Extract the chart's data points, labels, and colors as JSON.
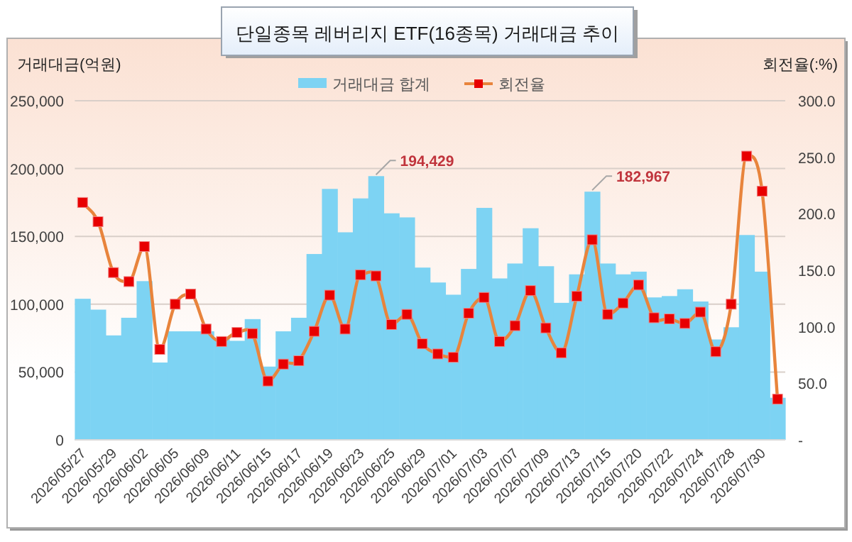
{
  "chart_data": {
    "type": "bar",
    "title": "단일종목 레버리지 ETF(16종목) 거래대금 추이",
    "ylabel": "거래대금(억원)",
    "y2label": "회전율(:%)",
    "categories": [
      "2026/05/27",
      null,
      "2026/05/29",
      null,
      "2026/06/02",
      null,
      "2026/06/05",
      null,
      "2026/06/09",
      null,
      "2026/06/11",
      null,
      "2026/06/15",
      null,
      "2026/06/17",
      null,
      "2026/06/19",
      null,
      "2026/06/23",
      null,
      "2026/06/25",
      null,
      "2026/06/29",
      null,
      "2026/07/01",
      null,
      "2026/07/03",
      null,
      "2026/07/07",
      null,
      "2026/07/09",
      null,
      "2026/07/13",
      null,
      "2026/07/15",
      null,
      "2026/07/20",
      null,
      "2026/07/22",
      null,
      "2026/07/24",
      null,
      "2026/07/28",
      null,
      "2026/07/30",
      null
    ],
    "series": [
      {
        "name": "거래대금 합계",
        "color": "#7dd3f3",
        "values": [
          104000,
          96000,
          77000,
          90000,
          117000,
          57000,
          80000,
          80000,
          80000,
          75000,
          73000,
          89000,
          54000,
          80000,
          90000,
          137000,
          185000,
          153000,
          178000,
          194429,
          167000,
          164000,
          127000,
          116000,
          107000,
          126000,
          171000,
          119000,
          130000,
          156000,
          128000,
          101000,
          122000,
          182967,
          130000,
          122000,
          124000,
          105000,
          106000,
          111000,
          102000,
          74000,
          83000,
          151000,
          124000,
          31000
        ],
        "value_labels": [
          null,
          null,
          null,
          null,
          null,
          null,
          null,
          null,
          null,
          null,
          null,
          null,
          null,
          null,
          null,
          null,
          null,
          null,
          null,
          "194,429",
          null,
          null,
          null,
          null,
          null,
          null,
          null,
          null,
          null,
          null,
          null,
          null,
          null,
          "182,967",
          null,
          null,
          null,
          null,
          null,
          null,
          null,
          null,
          null,
          null,
          null,
          null
        ]
      },
      {
        "name": "회전율",
        "type": "line",
        "axis": "y2",
        "color": "#e8843c",
        "marker": "square",
        "values": [
          210,
          193,
          148,
          140,
          171,
          80,
          120,
          129,
          98,
          87,
          95,
          94,
          52,
          67,
          70,
          96,
          128,
          98,
          146,
          145,
          102,
          111,
          85,
          76,
          73,
          112,
          126,
          87,
          101,
          132,
          99,
          77,
          127,
          177,
          111,
          121,
          137,
          108,
          107,
          103,
          113,
          78,
          120,
          251,
          220,
          36
        ]
      }
    ],
    "ylim": [
      0,
      250000
    ],
    "yticks": [
      0,
      {
        "value": 50000,
        "label": "50,000"
      },
      {
        "value": 100000,
        "label": "100,000"
      },
      {
        "value": 150000,
        "label": "150,000"
      },
      {
        "value": 200000,
        "label": "200,000"
      },
      {
        "value": 250000,
        "label": "250,000"
      }
    ],
    "y2lim": [
      0,
      300
    ],
    "y2ticks": [
      {
        "value": 0,
        "label": "-"
      },
      {
        "value": 50,
        "label": "50.0"
      },
      {
        "value": 100,
        "label": "100.0"
      },
      {
        "value": 150,
        "label": "150.0"
      },
      {
        "value": 200,
        "label": "200.0"
      },
      {
        "value": 250,
        "label": "250.0"
      },
      {
        "value": 300,
        "label": "300.0"
      }
    ],
    "grid": "y",
    "legend": "top"
  }
}
